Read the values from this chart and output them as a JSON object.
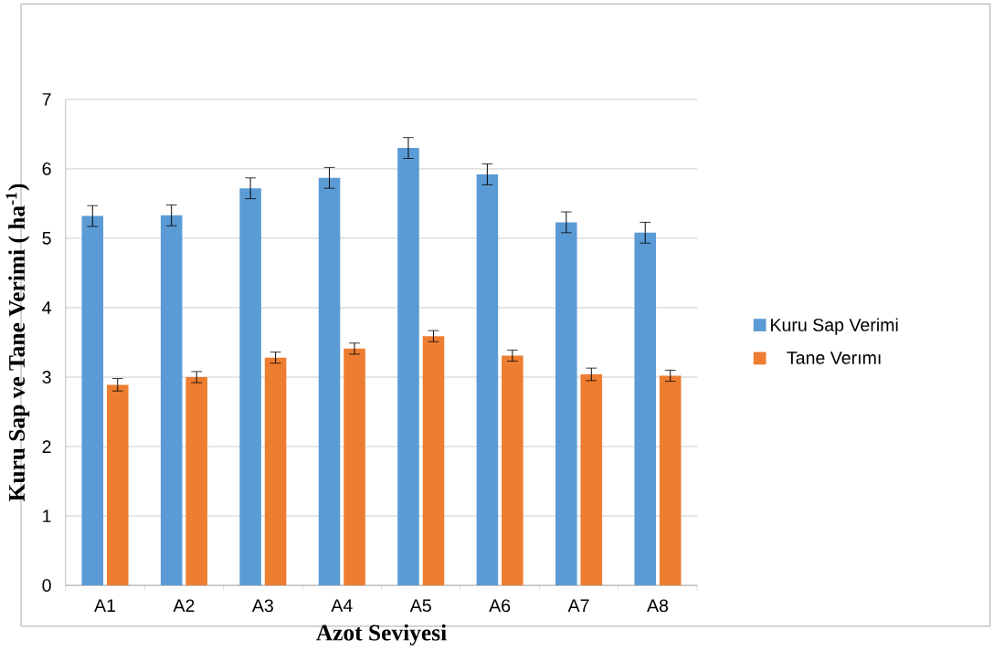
{
  "chart_data": {
    "type": "bar",
    "xlabel": "Azot Seviyesi",
    "ylabel": "Kuru Sap ve Tane Verimi ( ha$^{-1}$)",
    "categories": [
      "A1",
      "A2",
      "A3",
      "A4",
      "A5",
      "A6",
      "A7",
      "A8"
    ],
    "series": [
      {
        "name": "Kuru Sap Verimi",
        "color": "#5b9bd5",
        "values": [
          5.32,
          5.33,
          5.72,
          5.87,
          6.3,
          5.92,
          5.23,
          5.08
        ],
        "errors": [
          0.15,
          0.15,
          0.15,
          0.15,
          0.15,
          0.15,
          0.15,
          0.15
        ]
      },
      {
        "name": "Tane Verımı",
        "color": "#ed7d31",
        "values": [
          2.89,
          3.0,
          3.28,
          3.41,
          3.59,
          3.31,
          3.04,
          3.02
        ],
        "errors": [
          0.09,
          0.08,
          0.08,
          0.08,
          0.08,
          0.08,
          0.09,
          0.08
        ]
      }
    ],
    "ylim": [
      0,
      7
    ],
    "yticks": [
      0,
      1,
      2,
      3,
      4,
      5,
      6,
      7
    ],
    "grid": "y",
    "legend": "right"
  }
}
